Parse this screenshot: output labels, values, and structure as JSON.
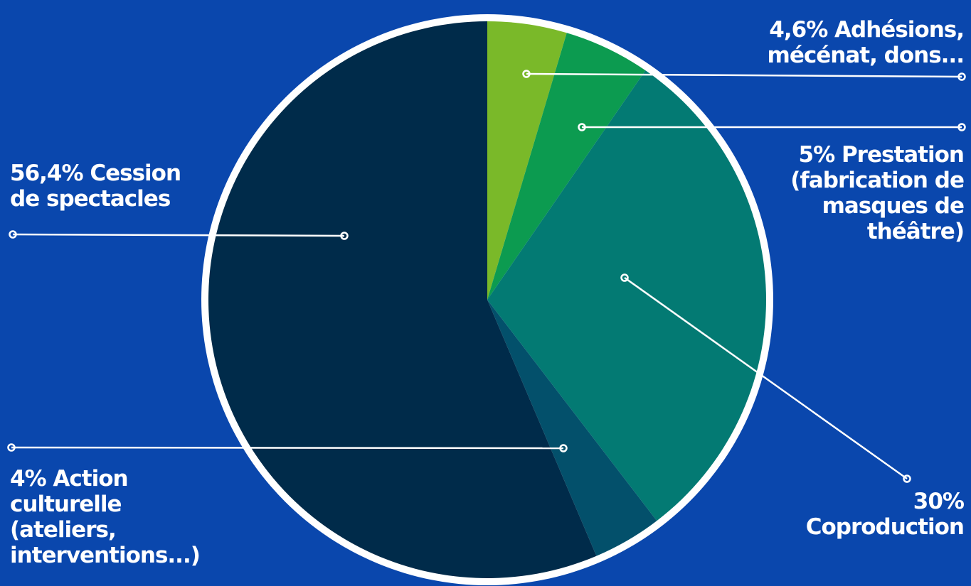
{
  "chart_data": {
    "type": "pie",
    "slices": [
      {
        "key": "adhesions",
        "label": "4,6% Adhésions,\nmécénat, dons...",
        "value": 4.6,
        "color": "#7ab929"
      },
      {
        "key": "prestation",
        "label": "5% Prestation\n(fabrication de\nmasques de\nthéâtre)",
        "value": 5,
        "color": "#0c9b50"
      },
      {
        "key": "coproduction",
        "label": "30%\nCoproduction",
        "value": 30,
        "color": "#037a73"
      },
      {
        "key": "action",
        "label": "4% Action\nculturelle\n(ateliers,\ninterventions...)",
        "value": 4,
        "color": "#03506b"
      },
      {
        "key": "cession",
        "label": "56,4% Cession\nde spectacles",
        "value": 56.4,
        "color": "#002b4a"
      }
    ],
    "colors": {
      "background": "#0a47ad",
      "border": "#ffffff",
      "leader": "#ffffff"
    }
  }
}
